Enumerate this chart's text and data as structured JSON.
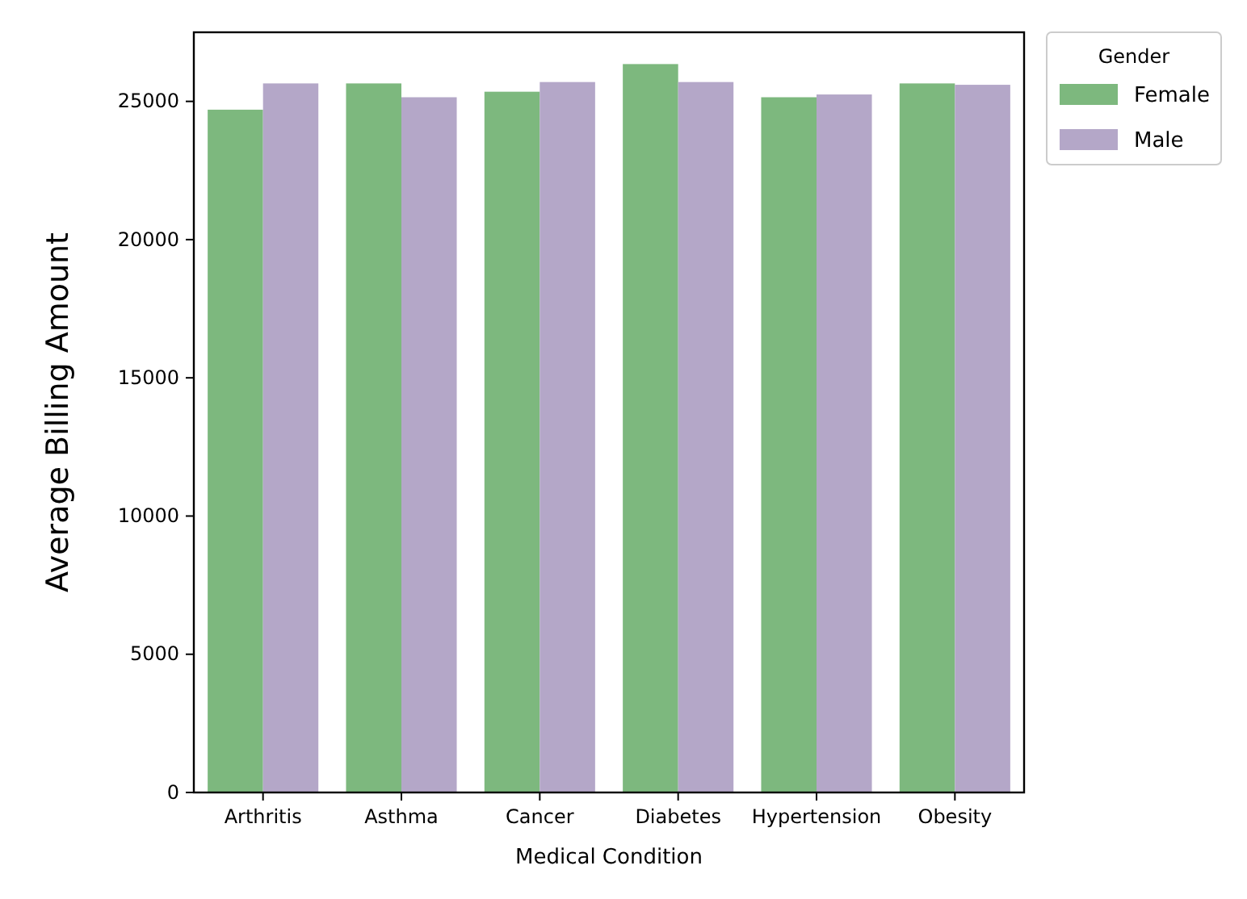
{
  "chart_data": {
    "type": "bar",
    "xlabel": "Medical Condition",
    "ylabel": "Average Billing Amount",
    "legend_title": "Gender",
    "categories": [
      "Arthritis",
      "Asthma",
      "Cancer",
      "Diabetes",
      "Hypertension",
      "Obesity"
    ],
    "series": [
      {
        "name": "Female",
        "color": "#7db87e",
        "values": [
          24700,
          25650,
          25350,
          26350,
          25150,
          25650
        ]
      },
      {
        "name": "Male",
        "color": "#b4a7c8",
        "values": [
          25650,
          25150,
          25700,
          25700,
          25250,
          25600
        ]
      }
    ],
    "ylim": [
      0,
      27500
    ],
    "yticks": [
      0,
      5000,
      10000,
      15000,
      20000,
      25000
    ],
    "legend": "right"
  }
}
